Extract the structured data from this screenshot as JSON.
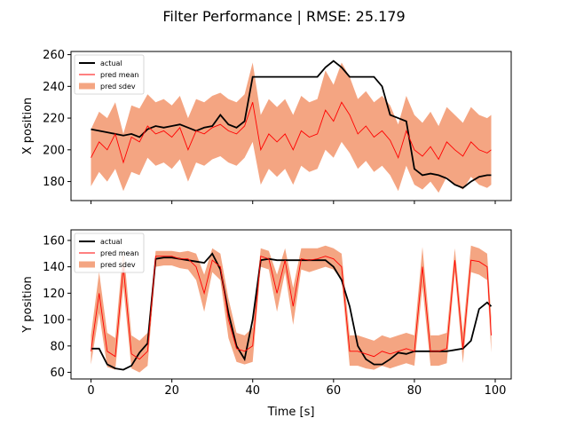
{
  "chart_data": {
    "type": "line",
    "title": "Filter Performance | RMSE: 25.179",
    "xlabel": "Time [s]",
    "xlim": [
      -4.95,
      103.95
    ],
    "xticks": [
      0,
      20,
      40,
      60,
      80,
      100
    ],
    "subplots": [
      {
        "ylabel": "X position",
        "ylim": [
          168,
          262
        ],
        "yticks": [
          180,
          200,
          220,
          240,
          260
        ],
        "legend": [
          "actual",
          "pred mean",
          "pred sdev"
        ],
        "legend_position": "upper-left",
        "series": [
          {
            "name": "actual",
            "color": "#000000",
            "x": [
              0,
              2,
              4,
              6,
              8,
              10,
              12,
              14,
              16,
              18,
              20,
              22,
              24,
              26,
              28,
              30,
              32,
              34,
              36,
              38,
              40,
              42,
              44,
              46,
              48,
              50,
              52,
              54,
              56,
              58,
              60,
              62,
              64,
              66,
              68,
              70,
              72,
              74,
              76,
              78,
              80,
              82,
              84,
              86,
              88,
              90,
              92,
              94,
              96,
              98,
              99
            ],
            "y": [
              213,
              212,
              211,
              210,
              209,
              210,
              208,
              213,
              215,
              214,
              215,
              216,
              214,
              212,
              214,
              215,
              222,
              216,
              214,
              218,
              246,
              246,
              246,
              246,
              246,
              246,
              246,
              246,
              246,
              252,
              256,
              252,
              246,
              246,
              246,
              246,
              240,
              222,
              220,
              218,
              188,
              184,
              185,
              184,
              182,
              178,
              176,
              180,
              183,
              184,
              184
            ]
          },
          {
            "name": "pred mean",
            "color": "#ff0000",
            "x": [
              0,
              2,
              4,
              6,
              8,
              10,
              12,
              14,
              16,
              18,
              20,
              22,
              24,
              26,
              28,
              30,
              32,
              34,
              36,
              38,
              40,
              42,
              44,
              46,
              48,
              50,
              52,
              54,
              56,
              58,
              60,
              62,
              64,
              66,
              68,
              70,
              72,
              74,
              76,
              78,
              80,
              82,
              84,
              86,
              88,
              90,
              92,
              94,
              96,
              98,
              99
            ],
            "y": [
              195,
              205,
              200,
              210,
              192,
              208,
              205,
              215,
              210,
              212,
              208,
              214,
              200,
              212,
              210,
              214,
              216,
              212,
              210,
              215,
              230,
              200,
              210,
              205,
              210,
              200,
              212,
              208,
              210,
              225,
              218,
              230,
              222,
              210,
              215,
              208,
              212,
              206,
              195,
              212,
              200,
              196,
              202,
              194,
              205,
              200,
              196,
              205,
              200,
              198,
              200
            ]
          }
        ],
        "band": {
          "name": "pred sdev",
          "color": "#f4a582",
          "x": [
            0,
            2,
            4,
            6,
            8,
            10,
            12,
            14,
            16,
            18,
            20,
            22,
            24,
            26,
            28,
            30,
            32,
            34,
            36,
            38,
            40,
            42,
            44,
            46,
            48,
            50,
            52,
            54,
            56,
            58,
            60,
            62,
            64,
            66,
            68,
            70,
            72,
            74,
            76,
            78,
            80,
            82,
            84,
            86,
            88,
            90,
            92,
            94,
            96,
            98,
            99
          ],
          "lower": [
            177,
            186,
            180,
            188,
            174,
            186,
            184,
            195,
            190,
            192,
            188,
            194,
            180,
            192,
            190,
            194,
            196,
            192,
            190,
            195,
            205,
            178,
            188,
            183,
            188,
            178,
            190,
            186,
            188,
            200,
            195,
            205,
            198,
            188,
            193,
            186,
            190,
            184,
            174,
            190,
            178,
            175,
            180,
            173,
            183,
            178,
            175,
            183,
            178,
            176,
            178
          ],
          "upper": [
            213,
            224,
            220,
            230,
            210,
            228,
            226,
            235,
            230,
            232,
            228,
            234,
            220,
            232,
            230,
            234,
            236,
            232,
            230,
            235,
            255,
            222,
            232,
            227,
            232,
            222,
            234,
            230,
            232,
            250,
            241,
            255,
            246,
            232,
            237,
            230,
            234,
            228,
            216,
            234,
            222,
            217,
            224,
            215,
            227,
            222,
            217,
            227,
            222,
            220,
            222
          ]
        }
      },
      {
        "ylabel": "Y position",
        "ylim": [
          55,
          168
        ],
        "yticks": [
          60,
          80,
          100,
          120,
          140,
          160
        ],
        "legend": [
          "actual",
          "pred mean",
          "pred sdev"
        ],
        "legend_position": "upper-left",
        "series": [
          {
            "name": "actual",
            "color": "#000000",
            "x": [
              0,
              2,
              4,
              6,
              8,
              10,
              12,
              14,
              16,
              18,
              20,
              22,
              24,
              26,
              28,
              30,
              32,
              34,
              36,
              38,
              40,
              42,
              44,
              46,
              48,
              50,
              52,
              54,
              56,
              58,
              60,
              62,
              64,
              66,
              68,
              70,
              72,
              74,
              76,
              78,
              80,
              82,
              84,
              86,
              88,
              90,
              92,
              94,
              96,
              98,
              99
            ],
            "y": [
              78,
              78,
              66,
              63,
              62,
              65,
              75,
              82,
              146,
              147,
              147,
              146,
              145,
              144,
              143,
              150,
              138,
              105,
              80,
              70,
              100,
              145,
              146,
              145,
              145,
              145,
              145,
              145,
              145,
              145,
              140,
              130,
              110,
              80,
              70,
              66,
              66,
              70,
              75,
              74,
              76,
              76,
              76,
              76,
              76,
              77,
              78,
              84,
              108,
              113,
              110
            ]
          },
          {
            "name": "pred mean",
            "color": "#ff0000",
            "x": [
              0,
              2,
              4,
              6,
              8,
              10,
              12,
              14,
              16,
              18,
              20,
              22,
              24,
              26,
              28,
              30,
              32,
              34,
              36,
              38,
              40,
              42,
              44,
              46,
              48,
              50,
              52,
              54,
              56,
              58,
              60,
              62,
              64,
              66,
              68,
              70,
              72,
              74,
              76,
              78,
              80,
              82,
              84,
              86,
              88,
              90,
              92,
              94,
              96,
              98,
              99
            ],
            "y": [
              76,
              120,
              76,
              72,
              140,
              74,
              70,
              76,
              148,
              148,
              148,
              146,
              146,
              140,
              120,
              145,
              140,
              100,
              78,
              76,
              80,
              148,
              146,
              120,
              145,
              110,
              146,
              145,
              146,
              148,
              146,
              140,
              76,
              76,
              74,
              72,
              76,
              74,
              76,
              78,
              76,
              140,
              76,
              76,
              78,
              145,
              78,
              145,
              144,
              140,
              88
            ]
          }
        ],
        "band": {
          "name": "pred sdev",
          "color": "#f4a582",
          "x": [
            0,
            2,
            4,
            6,
            8,
            10,
            12,
            14,
            16,
            18,
            20,
            22,
            24,
            26,
            28,
            30,
            32,
            34,
            36,
            38,
            40,
            42,
            44,
            46,
            48,
            50,
            52,
            54,
            56,
            58,
            60,
            62,
            64,
            66,
            68,
            70,
            72,
            74,
            76,
            78,
            80,
            82,
            84,
            86,
            88,
            90,
            92,
            94,
            96,
            98,
            99
          ],
          "lower": [
            66,
            105,
            64,
            62,
            125,
            63,
            60,
            65,
            140,
            141,
            141,
            139,
            138,
            130,
            106,
            136,
            130,
            86,
            68,
            66,
            68,
            140,
            138,
            106,
            136,
            96,
            138,
            136,
            138,
            140,
            138,
            130,
            65,
            65,
            63,
            62,
            65,
            63,
            65,
            67,
            65,
            125,
            65,
            65,
            67,
            136,
            67,
            136,
            134,
            130,
            75
          ],
          "upper": [
            88,
            136,
            90,
            86,
            155,
            88,
            84,
            90,
            152,
            152,
            152,
            151,
            152,
            150,
            134,
            154,
            150,
            116,
            90,
            88,
            94,
            154,
            152,
            134,
            154,
            124,
            154,
            154,
            154,
            156,
            154,
            150,
            88,
            88,
            86,
            84,
            88,
            86,
            88,
            90,
            88,
            155,
            88,
            88,
            90,
            154,
            90,
            156,
            154,
            150,
            102
          ]
        }
      }
    ]
  }
}
